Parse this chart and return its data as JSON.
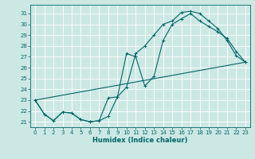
{
  "xlabel": "Humidex (Indice chaleur)",
  "bg_color": "#cce8e4",
  "grid_color": "#b0d8d4",
  "line_color": "#006666",
  "xlim": [
    -0.5,
    23.5
  ],
  "ylim": [
    20.5,
    31.8
  ],
  "yticks": [
    21,
    22,
    23,
    24,
    25,
    26,
    27,
    28,
    29,
    30,
    31
  ],
  "xticks": [
    0,
    1,
    2,
    3,
    4,
    5,
    6,
    7,
    8,
    9,
    10,
    11,
    12,
    13,
    14,
    15,
    16,
    17,
    18,
    19,
    20,
    21,
    22,
    23
  ],
  "line1_x": [
    0,
    1,
    2,
    3,
    4,
    5,
    6,
    7,
    8,
    9,
    10,
    11,
    12,
    13,
    14,
    15,
    16,
    17,
    18,
    19,
    20,
    21,
    22,
    23
  ],
  "line1_y": [
    23.0,
    21.7,
    21.1,
    21.9,
    21.8,
    21.2,
    21.0,
    21.1,
    21.5,
    23.3,
    24.2,
    27.3,
    28.0,
    29.0,
    30.0,
    30.3,
    31.1,
    31.2,
    31.0,
    30.3,
    29.6,
    28.5,
    27.1,
    26.5
  ],
  "line2_x": [
    0,
    1,
    2,
    3,
    4,
    5,
    6,
    7,
    8,
    9,
    10,
    11,
    12,
    13,
    14,
    15,
    16,
    17,
    18,
    19,
    20,
    21,
    22,
    23
  ],
  "line2_y": [
    23.0,
    21.7,
    21.1,
    21.9,
    21.8,
    21.2,
    21.0,
    21.1,
    23.2,
    23.3,
    27.3,
    27.0,
    24.3,
    25.2,
    28.5,
    30.0,
    30.5,
    31.0,
    30.3,
    29.8,
    29.3,
    28.7,
    27.5,
    26.5
  ],
  "line3_x": [
    0,
    23
  ],
  "line3_y": [
    23.0,
    26.5
  ]
}
